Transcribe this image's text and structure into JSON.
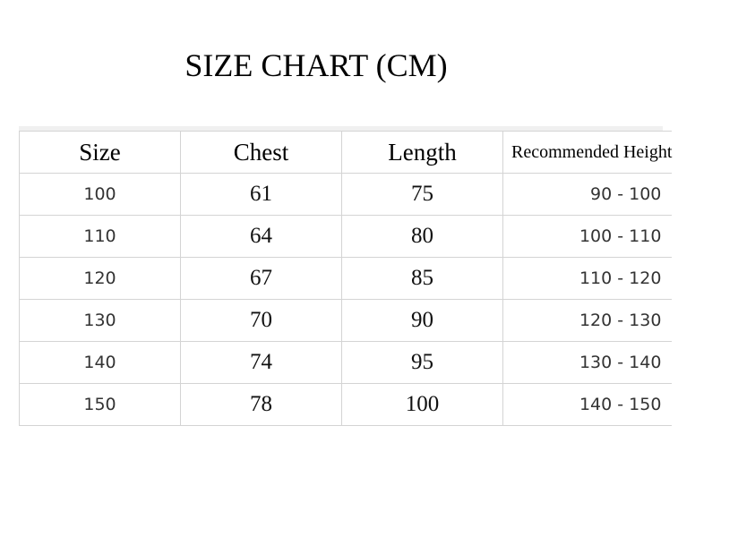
{
  "title": "SIZE CHART (CM)",
  "table": {
    "headers": [
      "Size",
      "Chest",
      "Length",
      "Recommended Height"
    ],
    "rows": [
      [
        "100",
        "61",
        "75",
        "90 - 100"
      ],
      [
        "110",
        "64",
        "80",
        "100 - 110"
      ],
      [
        "120",
        "67",
        "85",
        "110 - 120"
      ],
      [
        "130",
        "70",
        "90",
        "120 - 130"
      ],
      [
        "140",
        "74",
        "95",
        "130 - 140"
      ],
      [
        "150",
        "78",
        "100",
        "140 - 150"
      ]
    ]
  }
}
